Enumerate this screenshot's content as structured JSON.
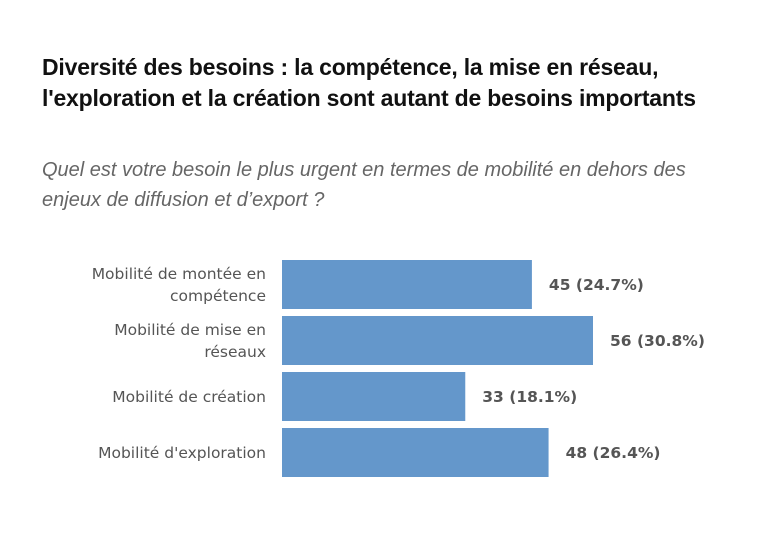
{
  "chart_data": {
    "type": "bar",
    "orientation": "horizontal",
    "title": "Diversité des besoins : la compétence, la mise en réseau, l'exploration et la création sont autant de besoins importants",
    "subtitle": "Quel est votre besoin le plus urgent en termes de mobilité en dehors des enjeux de diffusion et d’export ?",
    "xlabel": "",
    "ylabel": "",
    "categories": [
      [
        "Mobilité de montée en",
        "compétence"
      ],
      [
        "Mobilité de mise en",
        "réseaux"
      ],
      [
        "Mobilité de création"
      ],
      [
        "Mobilité d'exploration"
      ]
    ],
    "values": [
      45,
      56,
      33,
      48
    ],
    "percentages": [
      24.7,
      30.8,
      18.1,
      26.4
    ],
    "data_labels": [
      "45 (24.7%)",
      "56 (30.8%)",
      "33 (18.1%)",
      "48 (26.4%)"
    ],
    "xlim": [
      0,
      56
    ],
    "grid": false,
    "legend": "none",
    "colors": {
      "bar": "#6497cb",
      "label": "#555555",
      "title": "#111111",
      "subtitle": "#666666"
    }
  }
}
